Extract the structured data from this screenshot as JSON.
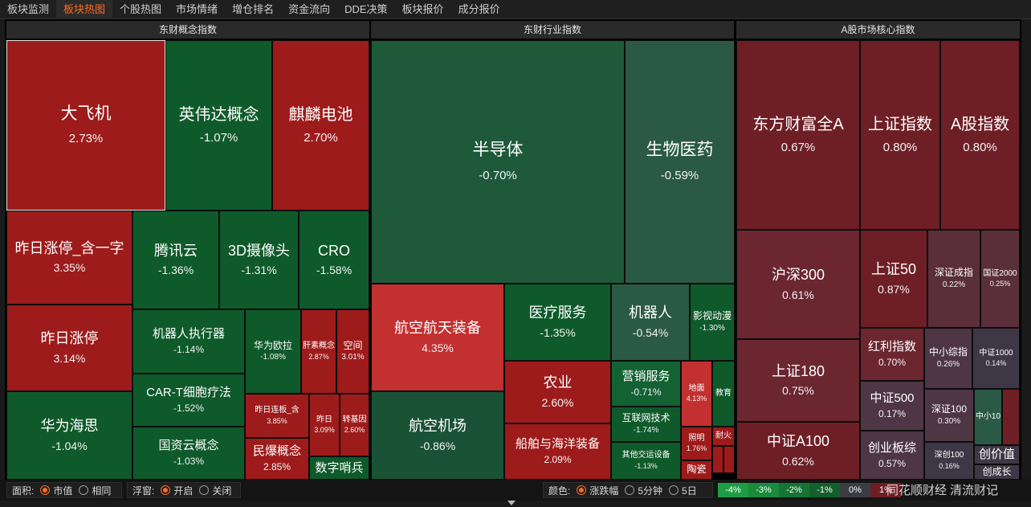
{
  "tabs": [
    "板块监测",
    "板块热图",
    "个股热图",
    "市场情绪",
    "增仓排名",
    "资金流向",
    "DDE决策",
    "板块报价",
    "成分报价"
  ],
  "active_tab": "板块热图",
  "panels": {
    "concept": "东财概念指数",
    "industry": "东财行业指数",
    "market": "A股市场核心指数"
  },
  "cells": [
    {
      "id": "dafeiji",
      "name": "大飞机",
      "pct": "2.73%"
    },
    {
      "id": "yingweida",
      "name": "英伟达概念",
      "pct": "-1.07%"
    },
    {
      "id": "qilin",
      "name": "麒麟电池",
      "pct": "2.70%"
    },
    {
      "id": "zrzt_yzz",
      "name": "昨日涨停_含一字",
      "pct": "3.35%"
    },
    {
      "id": "txy",
      "name": "腾讯云",
      "pct": "-1.36%"
    },
    {
      "id": "3d",
      "name": "3D摄像头",
      "pct": "-1.31%"
    },
    {
      "id": "cro",
      "name": "CRO",
      "pct": "-1.58%"
    },
    {
      "id": "zrzt",
      "name": "昨日涨停",
      "pct": "3.14%"
    },
    {
      "id": "jqrzxq",
      "name": "机器人执行器",
      "pct": "-1.14%"
    },
    {
      "id": "hwol",
      "name": "华为欧拉",
      "pct": "-1.08%"
    },
    {
      "id": "gsgn",
      "name": "肝素概念",
      "pct": "2.87%"
    },
    {
      "id": "kj",
      "name": "空间",
      "pct": "3.01%"
    },
    {
      "id": "hwhs",
      "name": "华为海思",
      "pct": "-1.04%"
    },
    {
      "id": "cart",
      "name": "CAR-T细胞疗法",
      "pct": "-1.52%"
    },
    {
      "id": "zrlb",
      "name": "昨日连板_含",
      "pct": "3.85%"
    },
    {
      "id": "zr2",
      "name": "昨日",
      "pct": "3.09%"
    },
    {
      "id": "zjy",
      "name": "转基因",
      "pct": "2.60%"
    },
    {
      "id": "gzy",
      "name": "国资云概念",
      "pct": "-1.03%"
    },
    {
      "id": "mbgn",
      "name": "民爆概念",
      "pct": "2.85%"
    },
    {
      "id": "szsb",
      "name": "数字哨兵",
      "pct": ""
    },
    {
      "id": "bdt",
      "name": "半导体",
      "pct": "-0.70%"
    },
    {
      "id": "swyy",
      "name": "生物医药",
      "pct": "-0.59%"
    },
    {
      "id": "hkht",
      "name": "航空航天装备",
      "pct": "4.35%"
    },
    {
      "id": "ylfw",
      "name": "医疗服务",
      "pct": "-1.35%"
    },
    {
      "id": "jqr",
      "name": "机器人",
      "pct": "-0.54%"
    },
    {
      "id": "ysdm",
      "name": "影视动漫",
      "pct": "-1.30%"
    },
    {
      "id": "ny",
      "name": "农业",
      "pct": "2.60%"
    },
    {
      "id": "yxfw",
      "name": "营销服务",
      "pct": "-0.71%"
    },
    {
      "id": "dm",
      "name": "地面",
      "pct": "4.13%"
    },
    {
      "id": "jy",
      "name": "教育",
      "pct": ""
    },
    {
      "id": "hljs",
      "name": "互联网技术",
      "pct": "-1.74%"
    },
    {
      "id": "hkjc",
      "name": "航空机场",
      "pct": "-0.86%"
    },
    {
      "id": "cbhy",
      "name": "船舶与海洋装备",
      "pct": "2.09%"
    },
    {
      "id": "qtjt",
      "name": "其他交运设备",
      "pct": "-1.13%"
    },
    {
      "id": "zm",
      "name": "照明",
      "pct": "1.76%"
    },
    {
      "id": "nh",
      "name": "耐火",
      "pct": ""
    },
    {
      "id": "tc",
      "name": "陶瓷",
      "pct": ""
    },
    {
      "id": "dfcf",
      "name": "东方财富全A",
      "pct": "0.67%"
    },
    {
      "id": "szzs",
      "name": "上证指数",
      "pct": "0.80%"
    },
    {
      "id": "agzs",
      "name": "A股指数",
      "pct": "0.80%"
    },
    {
      "id": "hs300",
      "name": "沪深300",
      "pct": "0.61%"
    },
    {
      "id": "sz50",
      "name": "上证50",
      "pct": "0.87%"
    },
    {
      "id": "szcz",
      "name": "深证成指",
      "pct": "0.22%"
    },
    {
      "id": "gz2000",
      "name": "国证2000",
      "pct": "0.25%"
    },
    {
      "id": "sz180",
      "name": "上证180",
      "pct": "0.75%"
    },
    {
      "id": "hlzs",
      "name": "红利指数",
      "pct": "0.70%"
    },
    {
      "id": "zxzz",
      "name": "中小综指",
      "pct": "0.26%"
    },
    {
      "id": "zz1000",
      "name": "中证1000",
      "pct": "0.14%"
    },
    {
      "id": "zz500",
      "name": "中证500",
      "pct": "0.17%"
    },
    {
      "id": "sz100",
      "name": "深证100",
      "pct": "0.30%"
    },
    {
      "id": "zx10",
      "name": "中小10",
      "pct": ""
    },
    {
      "id": "zzA100",
      "name": "中证A100",
      "pct": "0.62%"
    },
    {
      "id": "cybz",
      "name": "创业板综",
      "pct": "0.57%"
    },
    {
      "id": "sc100",
      "name": "深创100",
      "pct": "0.16%"
    },
    {
      "id": "cjz",
      "name": "创价值",
      "pct": ""
    },
    {
      "id": "cyz",
      "name": "创成长",
      "pct": ""
    }
  ],
  "controls": {
    "area_label": "面积:",
    "area_opts": [
      "市值",
      "相同"
    ],
    "area_selected": "市值",
    "float_label": "浮窗:",
    "float_opts": [
      "开启",
      "关闭"
    ],
    "float_selected": "开启",
    "color_label": "颜色:",
    "color_opts": [
      "涨跌幅",
      "5分钟",
      "5日"
    ],
    "color_selected": "涨跌幅"
  },
  "legend": [
    {
      "label": "-4%",
      "color": "#1e9e44"
    },
    {
      "label": "-3%",
      "color": "#1a8a3b"
    },
    {
      "label": "-2%",
      "color": "#177533"
    },
    {
      "label": "-1%",
      "color": "#14602c"
    },
    {
      "label": "0%",
      "color": "#3a3d44"
    },
    {
      "label": "1%",
      "color": "#6e1f26"
    }
  ],
  "watermark": "同花顺财经 清流财记"
}
